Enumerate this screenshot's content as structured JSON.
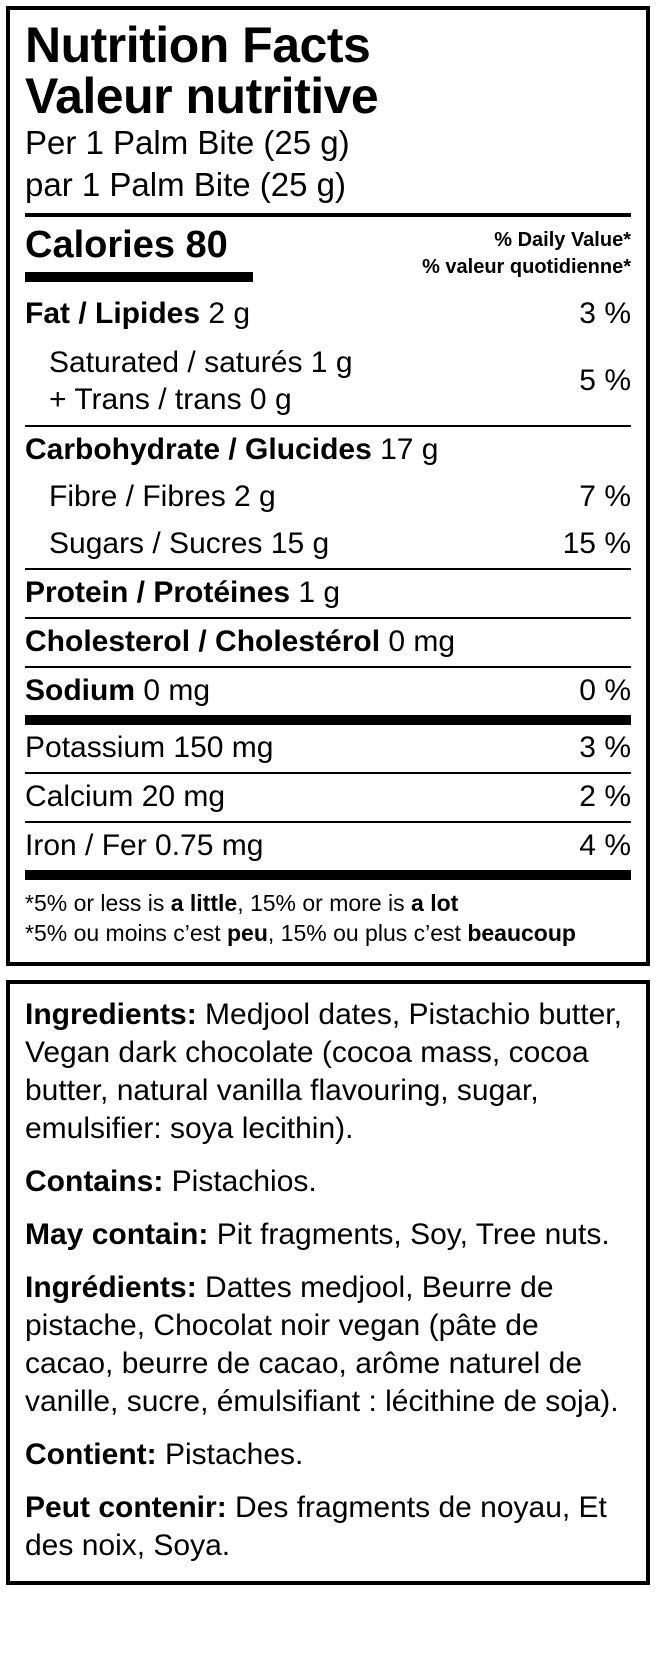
{
  "colors": {
    "ink": "#000000",
    "paper": "#ffffff"
  },
  "nft": {
    "title_en": "Nutrition Facts",
    "title_fr": "Valeur nutritive",
    "serving_en": "Per 1 Palm Bite (25 g)",
    "serving_fr": "par 1 Palm Bite (25 g)",
    "calories_label": "Calories 80",
    "dv_header_en": "% Daily Value*",
    "dv_header_fr": "% valeur quotidienne*",
    "rows": [
      {
        "bold": "Fat / Lipides",
        "rest": " 2 g",
        "dv": "3 %"
      },
      {
        "line1": "Saturated / saturés 1 g",
        "line2": "+ Trans / trans 0 g",
        "dv": "5 %"
      },
      {
        "bold": "Carbohydrate / Glucides",
        "rest": " 17 g",
        "dv": ""
      },
      {
        "rest": "Fibre / Fibres 2 g",
        "dv": "7 %"
      },
      {
        "rest": "Sugars / Sucres 15 g",
        "dv": "15 %"
      },
      {
        "bold": "Protein / Protéines",
        "rest": " 1 g",
        "dv": ""
      },
      {
        "bold": "Cholesterol / Cholestérol",
        "rest": " 0 mg",
        "dv": ""
      },
      {
        "bold": "Sodium",
        "rest": " 0 mg",
        "dv": "0 %"
      },
      {
        "rest": "Potassium 150 mg",
        "dv": "3 %"
      },
      {
        "rest": "Calcium 20 mg",
        "dv": "2 %"
      },
      {
        "rest": "Iron / Fer 0.75 mg",
        "dv": "4 %"
      }
    ],
    "footnote_en": {
      "p1": "*5% or less is ",
      "b1": "a little",
      "p2": ", 15% or more is ",
      "b2": "a lot"
    },
    "footnote_fr": {
      "p1": "*5% ou moins c’est ",
      "b1": "peu",
      "p2": ", 15% ou plus c’est ",
      "b2": "beaucoup"
    }
  },
  "ingredients": {
    "paragraphs": [
      {
        "label": "Ingredients:",
        "text": "Medjool dates, Pistachio butter, Vegan dark chocolate (cocoa mass, cocoa butter, natural vanilla flavouring, sugar, emulsifier: soya lecithin)."
      },
      {
        "label": "Contains:",
        "text": "Pistachios."
      },
      {
        "label": "May contain:",
        "text": "Pit fragments, Soy, Tree nuts."
      },
      {
        "label": "Ingrédients:",
        "text": "Dattes medjool, Beurre de pistache, Chocolat noir vegan (pâte de cacao, beurre de cacao, arôme naturel de vanille, sucre, émulsifiant : lécithine de soja)."
      },
      {
        "label": "Contient:",
        "text": "Pistaches."
      },
      {
        "label": "Peut contenir:",
        "text": "Des fragments de noyau, Et des noix, Soya."
      }
    ]
  }
}
